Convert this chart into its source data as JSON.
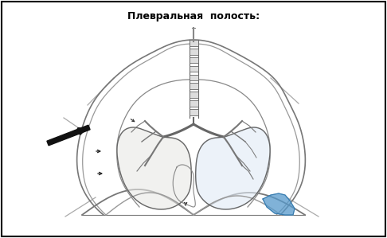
{
  "title": "Плевральная  полость:",
  "title_fontsize": 9,
  "title_fontweight": "bold",
  "bg_color": "#ffffff",
  "fig_width": 4.86,
  "fig_height": 2.99,
  "dpi": 100
}
